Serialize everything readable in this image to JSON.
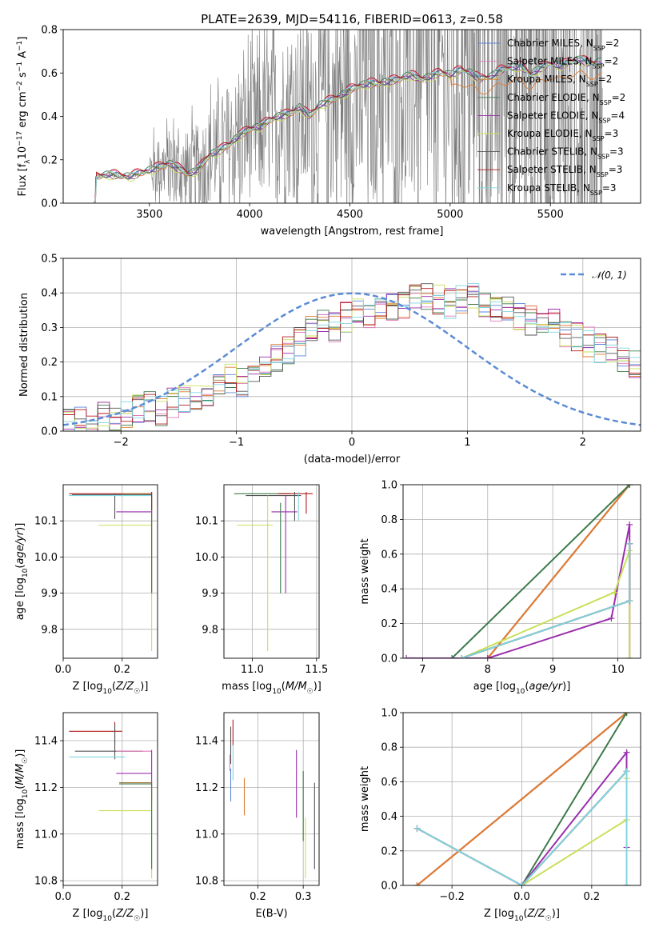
{
  "page_title": "PLATE=2639, MJD=54116, FIBERID=0613, z=0.58",
  "colors": {
    "Chabrier MILES": "#5b84d6",
    "Salpeter MILES": "#e07cb8",
    "Kroupa MILES": "#a77a3a",
    "Chabrier ELODIE": "#3d7a4a",
    "Salpeter ELODIE": "#9b2fae",
    "Kroupa ELODIE": "#c8e05a",
    "Chabrier STELIB": "#555555",
    "Salpeter STELIB": "#b51c1c",
    "Kroupa STELIB": "#7fd6e0",
    "normal": "#5b8bd6",
    "data": "#7a7a7a",
    "orange": "#e07a30",
    "grid": "#b0b0b0"
  },
  "chart_data": [
    {
      "id": "spectrum",
      "type": "line",
      "title": "PLATE=2639, MJD=54116, FIBERID=0613, z=0.58",
      "xlabel": "wavelength [Angstrom, rest frame]",
      "ylabel": "Flux [f_λ 10^-17 erg cm^-2 s^-1 A^-1]",
      "xlim": [
        3070,
        5950
      ],
      "ylim": [
        0,
        0.8
      ],
      "xticks": [
        3500,
        4000,
        4500,
        5000,
        5500
      ],
      "yticks": [
        0.0,
        0.2,
        0.4,
        0.6,
        0.8
      ],
      "grid": false,
      "legend_position": "top-right",
      "legend": [
        {
          "label": "Chabrier MILES, N",
          "sub": "SSP",
          "rest": "=2"
        },
        {
          "label": "Salpeter MILES, N",
          "sub": "SSP",
          "rest": "=2"
        },
        {
          "label": "Kroupa MILES, N",
          "sub": "SSP",
          "rest": "=2"
        },
        {
          "label": "Chabrier ELODIE, N",
          "sub": "SSP",
          "rest": "=2"
        },
        {
          "label": "Salpeter ELODIE, N",
          "sub": "SSP",
          "rest": "=4"
        },
        {
          "label": "Kroupa ELODIE, N",
          "sub": "SSP",
          "rest": "=3"
        },
        {
          "label": "Chabrier STELIB, N",
          "sub": "SSP",
          "rest": "=3"
        },
        {
          "label": "Salpeter STELIB, N",
          "sub": "SSP",
          "rest": "=3"
        },
        {
          "label": "Kroupa STELIB, N",
          "sub": "SSP",
          "rest": "=3"
        }
      ],
      "model_x": [
        3230,
        3300,
        3400,
        3500,
        3600,
        3700,
        3750,
        3800,
        3850,
        3900,
        3950,
        4000,
        4050,
        4100,
        4150,
        4200,
        4250,
        4300,
        4350,
        4400,
        4450,
        4500,
        4550,
        4600,
        4650,
        4700,
        4750,
        4800,
        4850,
        4900,
        4950,
        5000,
        5050,
        5100,
        5150,
        5200,
        5250,
        5300,
        5350,
        5400,
        5450,
        5500,
        5550,
        5600,
        5650,
        5700,
        5750
      ],
      "model_y": [
        0.12,
        0.13,
        0.12,
        0.15,
        0.18,
        0.13,
        0.16,
        0.22,
        0.24,
        0.27,
        0.31,
        0.34,
        0.35,
        0.38,
        0.4,
        0.41,
        0.44,
        0.4,
        0.45,
        0.47,
        0.49,
        0.52,
        0.54,
        0.55,
        0.55,
        0.56,
        0.57,
        0.59,
        0.57,
        0.58,
        0.6,
        0.59,
        0.61,
        0.6,
        0.57,
        0.58,
        0.61,
        0.62,
        0.63,
        0.59,
        0.62,
        0.64,
        0.63,
        0.65,
        0.66,
        0.64,
        0.65
      ],
      "noise_start": 3500
    },
    {
      "id": "residuals",
      "type": "line",
      "xlabel": "(data-model)/error",
      "ylabel": "Normed distribution",
      "xlim": [
        -2.5,
        2.5
      ],
      "ylim": [
        0,
        0.5
      ],
      "xticks": [
        -2,
        -1,
        0,
        1,
        2
      ],
      "yticks": [
        0.0,
        0.1,
        0.2,
        0.3,
        0.4,
        0.5
      ],
      "grid": true,
      "legend_position": "top-right",
      "legend_label": "𝒩(0, 1)",
      "bin_start": -2.5,
      "bin_width": 0.1,
      "base_hist": [
        0.02,
        0.03,
        0.03,
        0.04,
        0.04,
        0.05,
        0.06,
        0.07,
        0.06,
        0.08,
        0.09,
        0.1,
        0.11,
        0.13,
        0.15,
        0.14,
        0.16,
        0.18,
        0.21,
        0.23,
        0.26,
        0.29,
        0.31,
        0.3,
        0.33,
        0.35,
        0.33,
        0.34,
        0.36,
        0.37,
        0.38,
        0.39,
        0.38,
        0.37,
        0.38,
        0.39,
        0.37,
        0.36,
        0.35,
        0.33,
        0.32,
        0.3,
        0.31,
        0.28,
        0.27,
        0.26,
        0.24,
        0.23,
        0.2
      ]
    },
    {
      "id": "age-Z",
      "type": "scatter",
      "xlabel": "Z [log10(Z/Z☉)]",
      "ylabel": "age [log10(age/yr)]",
      "xlim": [
        0.0,
        0.32
      ],
      "ylim": [
        9.72,
        10.2
      ],
      "xticks": [
        0.0,
        0.2
      ],
      "yticks": [
        9.8,
        9.9,
        10.0,
        10.1
      ],
      "grid": true
    },
    {
      "id": "age-mass",
      "type": "scatter",
      "xlabel": "mass [log10(M/M☉)]",
      "ylabel": "",
      "xlim": [
        10.78,
        11.52
      ],
      "ylim": [
        9.72,
        10.2
      ],
      "xticks": [
        11.0,
        11.5
      ],
      "yticks": [
        9.8,
        9.9,
        10.0,
        10.1
      ],
      "grid": true
    },
    {
      "id": "weight-age",
      "type": "line",
      "xlabel": "age  [log10(age/yr)]",
      "ylabel": "mass weight",
      "xlim": [
        6.7,
        10.35
      ],
      "ylim": [
        0.0,
        1.0
      ],
      "xticks": [
        7,
        8,
        9,
        10
      ],
      "yticks": [
        0.0,
        0.2,
        0.4,
        0.6,
        0.8,
        1.0
      ],
      "grid": true,
      "series": [
        {
          "key": "Chabrier MILES",
          "x": [
            8.0,
            10.18
          ],
          "y": [
            0.0,
            1.0
          ]
        },
        {
          "key": "Salpeter MILES",
          "x": [
            8.0,
            10.18
          ],
          "y": [
            0.0,
            1.0
          ]
        },
        {
          "key": "Kroupa MILES",
          "x": [
            8.0,
            10.18
          ],
          "y": [
            0.0,
            1.0
          ]
        },
        {
          "key": "Chabrier ELODIE",
          "x": [
            7.45,
            10.18
          ],
          "y": [
            0.0,
            1.0
          ]
        },
        {
          "key": "Salpeter ELODIE",
          "x": [
            6.75,
            8.0,
            9.9,
            10.18,
            10.18
          ],
          "y": [
            0.0,
            0.0,
            0.23,
            0.77,
            0.0
          ]
        },
        {
          "key": "Kroupa ELODIE",
          "x": [
            7.6,
            9.95,
            10.18,
            10.18
          ],
          "y": [
            0.0,
            0.38,
            0.62,
            0.0
          ]
        },
        {
          "key": "Chabrier STELIB",
          "x": [
            7.6,
            10.18,
            10.18
          ],
          "y": [
            0.0,
            0.33,
            0.66
          ]
        },
        {
          "key": "Salpeter STELIB",
          "x": [
            7.6,
            10.18,
            10.18
          ],
          "y": [
            0.0,
            0.33,
            0.66
          ]
        },
        {
          "key": "Kroupa STELIB",
          "x": [
            7.6,
            10.18,
            10.18
          ],
          "y": [
            0.0,
            0.33,
            0.66
          ]
        }
      ]
    },
    {
      "id": "mass-Z",
      "type": "scatter",
      "xlabel": "Z [log10(Z/Z☉)]",
      "ylabel": "mass [log10(M/M☉)]",
      "xlim": [
        0.0,
        0.32
      ],
      "ylim": [
        10.78,
        11.52
      ],
      "xticks": [
        0.0,
        0.2
      ],
      "yticks": [
        10.8,
        11.0,
        11.2,
        11.4
      ],
      "grid": true
    },
    {
      "id": "mass-EBV",
      "type": "scatter",
      "xlabel": "E(B-V)",
      "ylabel": "",
      "xlim": [
        0.125,
        0.335
      ],
      "ylim": [
        10.78,
        11.52
      ],
      "xticks": [
        0.2,
        0.3
      ],
      "yticks": [
        10.8,
        11.0,
        11.2,
        11.4
      ],
      "grid": true
    },
    {
      "id": "weight-Z",
      "type": "line",
      "xlabel": "Z [log10(Z/Z☉)]",
      "ylabel": "mass weight",
      "xlim": [
        -0.34,
        0.34
      ],
      "ylim": [
        0.0,
        1.0
      ],
      "xticks": [
        -0.2,
        0.0,
        0.2
      ],
      "yticks": [
        0.0,
        0.2,
        0.4,
        0.6,
        0.8,
        1.0
      ],
      "grid": true,
      "series": [
        {
          "key": "Chabrier MILES",
          "x": [
            -0.3,
            0.3
          ],
          "y": [
            0.0,
            1.0
          ]
        },
        {
          "key": "Salpeter MILES",
          "x": [
            -0.3,
            0.3
          ],
          "y": [
            0.0,
            1.0
          ]
        },
        {
          "key": "Kroupa MILES",
          "x": [
            -0.3,
            0.3
          ],
          "y": [
            0.0,
            1.0
          ]
        },
        {
          "key": "Chabrier ELODIE",
          "x": [
            0.0,
            0.3
          ],
          "y": [
            0.0,
            1.0
          ]
        },
        {
          "key": "Salpeter ELODIE",
          "x": [
            0.0,
            0.3,
            0.3
          ],
          "y": [
            0.0,
            0.77,
            0.22
          ]
        },
        {
          "key": "Kroupa ELODIE",
          "x": [
            0.0,
            0.3,
            0.3
          ],
          "y": [
            0.0,
            0.38,
            0.62
          ]
        },
        {
          "key": "Chabrier STELIB",
          "x": [
            -0.3,
            0.0,
            0.3,
            0.3
          ],
          "y": [
            0.33,
            0.0,
            0.66,
            0.0
          ]
        },
        {
          "key": "Salpeter STELIB",
          "x": [
            -0.3,
            0.0,
            0.3,
            0.3
          ],
          "y": [
            0.33,
            0.0,
            0.66,
            0.0
          ]
        },
        {
          "key": "Kroupa STELIB",
          "x": [
            -0.3,
            0.0,
            0.3,
            0.3
          ],
          "y": [
            0.33,
            0.0,
            0.66,
            0.0
          ]
        }
      ]
    }
  ]
}
